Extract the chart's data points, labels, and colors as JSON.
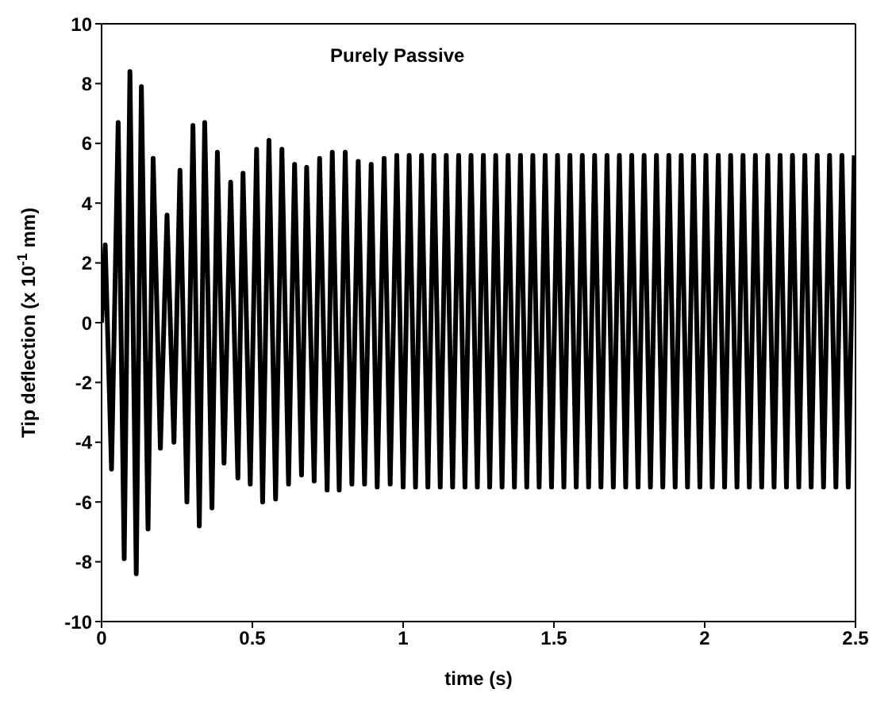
{
  "chart_data": {
    "type": "line",
    "xlabel": "time (s)",
    "ylabel": "Tip deflection (x 10$^{-1}$ mm)",
    "annotations": [
      "Purely Passive"
    ],
    "xlim": [
      0,
      2.5
    ],
    "xticks": [
      0,
      0.5,
      1,
      1.5,
      2,
      2.5
    ],
    "ylim": [
      -10,
      10
    ],
    "yticks": [
      -10,
      -8,
      -6,
      -4,
      -2,
      0,
      2,
      4,
      6,
      8,
      10
    ],
    "grid": false,
    "marker": "none",
    "line_style": "solid",
    "series": [
      {
        "color": "#000000",
        "x": [
          0,
          0.012,
          0.033,
          0.055,
          0.075,
          0.094,
          0.115,
          0.132,
          0.154,
          0.171,
          0.195,
          0.217,
          0.24,
          0.26,
          0.283,
          0.303,
          0.324,
          0.342,
          0.366,
          0.384,
          0.406,
          0.428,
          0.452,
          0.469,
          0.493,
          0.514,
          0.534,
          0.555,
          0.577,
          0.598,
          0.62,
          0.64,
          0.663,
          0.68,
          0.705,
          0.723,
          0.748,
          0.765,
          0.788,
          0.808,
          0.83,
          0.851,
          0.872,
          0.894,
          0.914,
          0.937,
          0.957,
          0.979,
          1.0,
          1.02,
          1.041,
          1.061,
          1.082,
          1.102,
          1.123,
          1.143,
          1.164,
          1.184,
          1.205,
          1.225,
          1.246,
          1.266,
          1.287,
          1.307,
          1.328,
          1.348,
          1.369,
          1.389,
          1.41,
          1.43,
          1.451,
          1.471,
          1.492,
          1.512,
          1.533,
          1.553,
          1.574,
          1.594,
          1.615,
          1.635,
          1.656,
          1.676,
          1.697,
          1.717,
          1.738,
          1.758,
          1.779,
          1.799,
          1.82,
          1.84,
          1.861,
          1.881,
          1.902,
          1.922,
          1.943,
          1.963,
          1.984,
          2.004,
          2.025,
          2.045,
          2.066,
          2.086,
          2.107,
          2.127,
          2.148,
          2.168,
          2.189,
          2.209,
          2.23,
          2.25,
          2.271,
          2.291,
          2.312,
          2.332,
          2.353,
          2.373,
          2.394,
          2.414,
          2.435,
          2.455,
          2.476,
          2.496
        ],
        "values": [
          0,
          2.6,
          -4.9,
          6.7,
          -7.9,
          8.4,
          -8.4,
          7.9,
          -6.9,
          5.5,
          -4.2,
          3.6,
          -4.0,
          5.1,
          -6.0,
          6.6,
          -6.8,
          6.7,
          -6.2,
          5.7,
          -4.7,
          4.7,
          -5.2,
          5.0,
          -5.4,
          5.8,
          -6.0,
          6.1,
          -5.9,
          5.8,
          -5.4,
          5.3,
          -5.1,
          5.2,
          -5.3,
          5.5,
          -5.6,
          5.7,
          -5.6,
          5.7,
          -5.4,
          5.4,
          -5.4,
          5.3,
          -5.5,
          5.5,
          -5.4,
          5.6,
          -5.5,
          5.6,
          -5.5,
          5.6,
          -5.5,
          5.6,
          -5.5,
          5.6,
          -5.5,
          5.6,
          -5.5,
          5.6,
          -5.5,
          5.6,
          -5.5,
          5.6,
          -5.5,
          5.6,
          -5.5,
          5.6,
          -5.5,
          5.6,
          -5.5,
          5.6,
          -5.5,
          5.6,
          -5.5,
          5.6,
          -5.5,
          5.6,
          -5.5,
          5.6,
          -5.5,
          5.6,
          -5.5,
          5.6,
          -5.5,
          5.6,
          -5.5,
          5.6,
          -5.5,
          5.6,
          -5.5,
          5.6,
          -5.5,
          5.6,
          -5.5,
          5.6,
          -5.5,
          5.6,
          -5.5,
          5.6,
          -5.5,
          5.6,
          -5.5,
          5.6,
          -5.5,
          5.6,
          -5.5,
          5.6,
          -5.5,
          5.6,
          -5.5,
          5.6,
          -5.5,
          5.6,
          -5.5,
          5.6,
          -5.5,
          5.6,
          -5.5,
          5.6,
          -5.5,
          5.6
        ]
      }
    ]
  }
}
